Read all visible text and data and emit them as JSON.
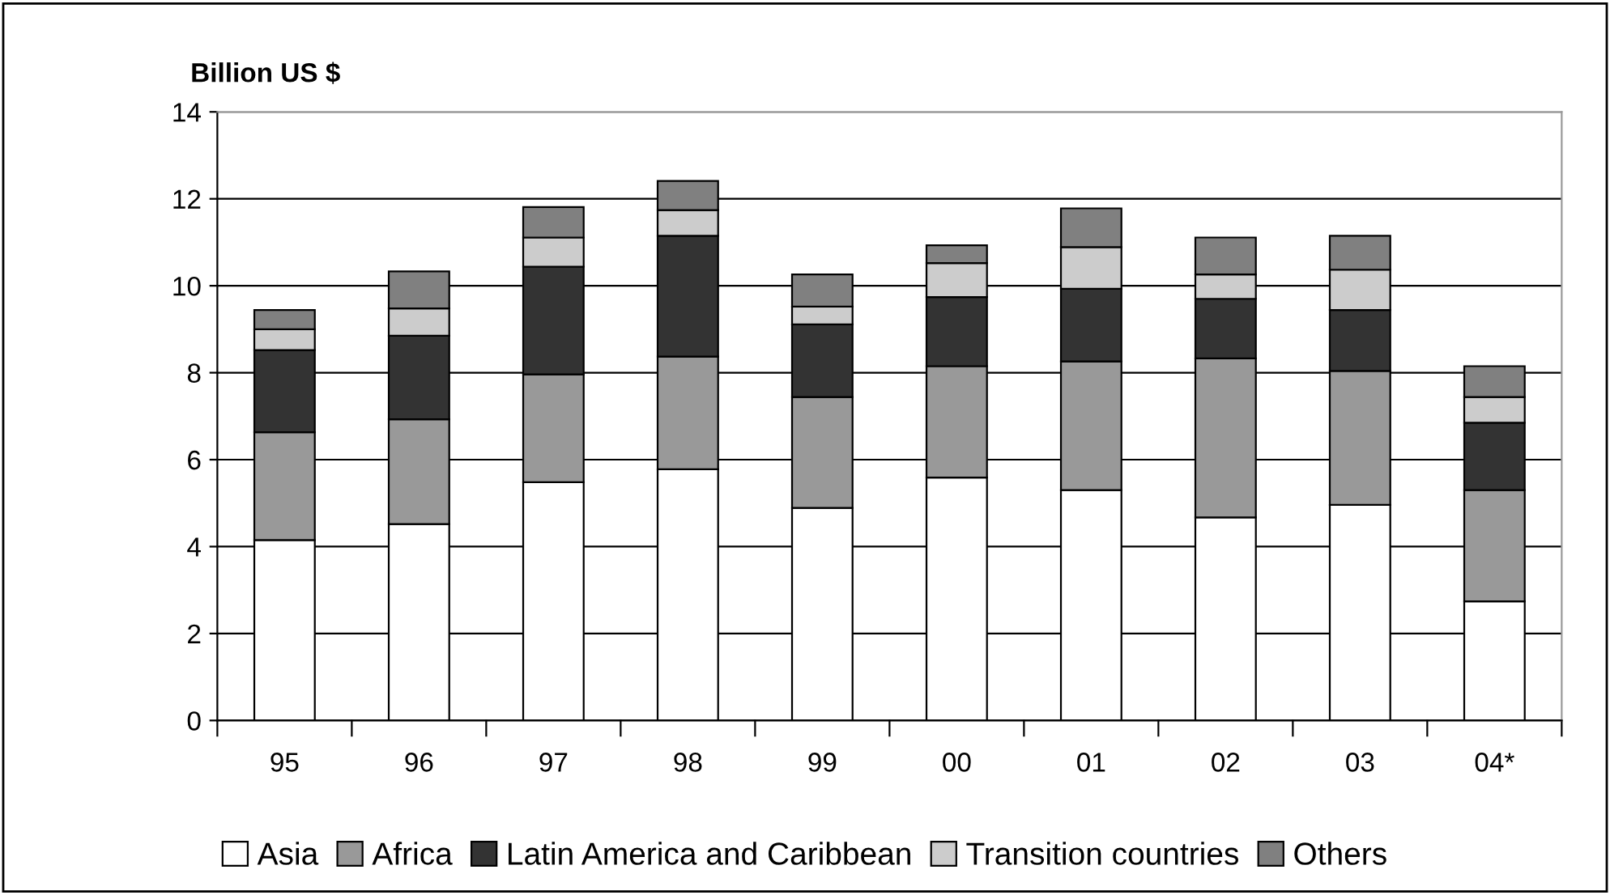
{
  "chart_data": {
    "type": "bar",
    "stacked": true,
    "ylabel": "Billion US $",
    "categories": [
      "95",
      "96",
      "97",
      "98",
      "99",
      "00",
      "01",
      "02",
      "03",
      "04*"
    ],
    "series": [
      {
        "name": "Asia",
        "color": "#ffffff",
        "values": [
          4.15,
          4.52,
          5.48,
          5.78,
          4.89,
          5.59,
          5.3,
          4.67,
          4.96,
          2.74
        ]
      },
      {
        "name": "Africa",
        "color": "#999999",
        "values": [
          2.48,
          2.41,
          2.48,
          2.59,
          2.55,
          2.56,
          2.96,
          3.66,
          3.08,
          2.56
        ]
      },
      {
        "name": "Latin America and Caribbean",
        "color": "#333333",
        "values": [
          1.89,
          1.92,
          2.48,
          2.78,
          1.67,
          1.59,
          1.67,
          1.37,
          1.4,
          1.55
        ]
      },
      {
        "name": "Transition countries",
        "color": "#cccccc",
        "values": [
          0.48,
          0.63,
          0.67,
          0.59,
          0.41,
          0.78,
          0.96,
          0.56,
          0.93,
          0.59
        ]
      },
      {
        "name": "Others",
        "color": "#808080",
        "values": [
          0.44,
          0.85,
          0.7,
          0.67,
          0.74,
          0.41,
          0.89,
          0.85,
          0.78,
          0.71
        ]
      }
    ],
    "ylim": [
      0,
      14
    ],
    "yticks": [
      0,
      2,
      4,
      6,
      8,
      10,
      12,
      14
    ],
    "grid": "y",
    "legend": "bottom"
  }
}
